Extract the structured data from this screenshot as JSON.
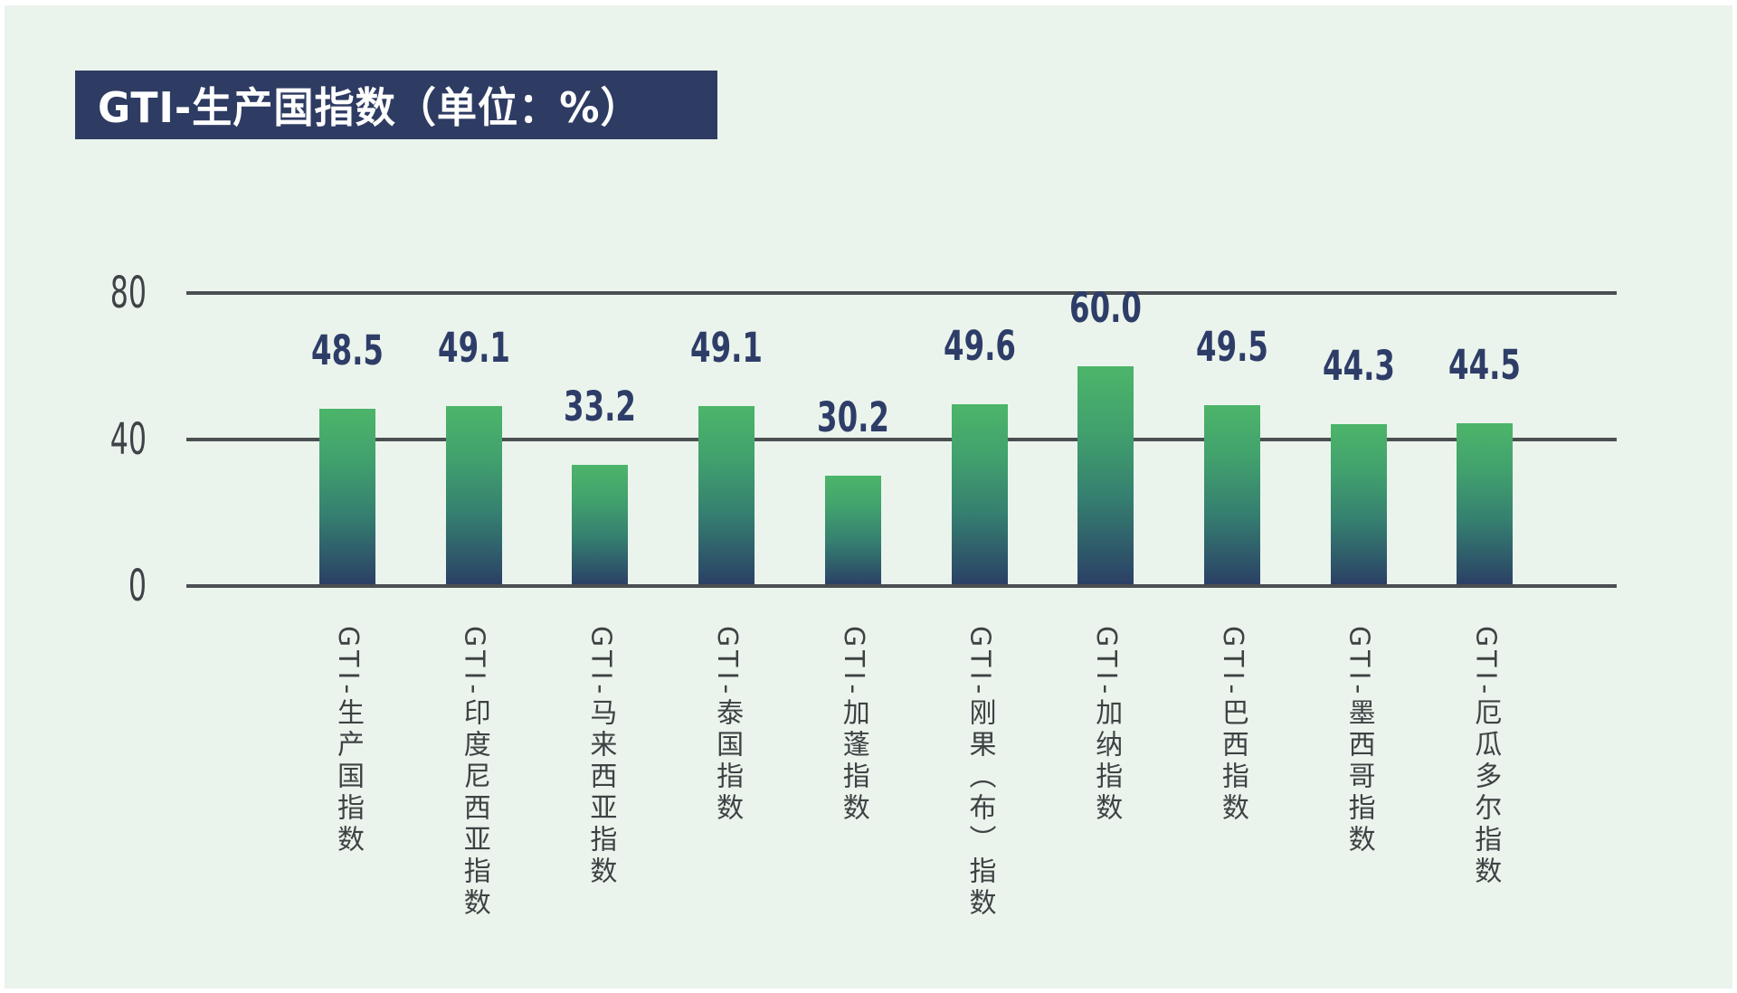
{
  "title": "GTI-生产国指数（单位：%）",
  "colors": {
    "background": "#eaf4ec",
    "frame": "#ffffff",
    "title_bg": "#2e3c63",
    "title_text": "#ffffff",
    "grid": "#4b4f52",
    "tick_text": "#3e4347",
    "value_text": "#2e3d68",
    "category_text": "#3e4244",
    "bar_gradient_top": "#4cb56a",
    "bar_gradient_mid": "#357f70",
    "bar_gradient_bottom": "#2b3e65"
  },
  "y_axis": {
    "ticks": [
      80,
      40,
      0
    ]
  },
  "chart_data": {
    "type": "bar",
    "title": "GTI-生产国指数（单位：%）",
    "unit": "%",
    "categories": [
      "GTI-生产国指数",
      "GTI-印度尼西亚指数",
      "GTI-马来西亚指数",
      "GTI-泰国指数",
      "GTI-加蓬指数",
      "GTI-刚果（布）指数",
      "GTI-加纳指数",
      "GTI-巴西指数",
      "GTI-墨西哥指数",
      "GTI-厄瓜多尔指数"
    ],
    "values": [
      48.5,
      49.1,
      33.2,
      49.1,
      30.2,
      49.6,
      60.0,
      49.5,
      44.3,
      44.5
    ],
    "value_labels": [
      "48.5",
      "49.1",
      "33.2",
      "49.1",
      "30.2",
      "49.6",
      "60.0",
      "49.5",
      "44.3",
      "44.5"
    ],
    "ylim": [
      0,
      80
    ],
    "yticks": [
      0,
      40,
      80
    ],
    "grid": true,
    "legend": false,
    "ylabel": "",
    "xlabel": ""
  }
}
